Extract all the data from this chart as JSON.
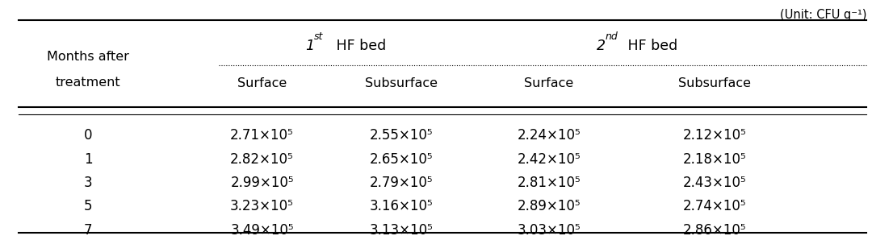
{
  "unit_label": "(Unit: CFU g⁻¹)",
  "col0_header_line1": "Months after",
  "col0_header_line2": "treatment",
  "hf1_label": "1",
  "hf1_super": "st",
  "hf1_rest": " HF bed",
  "hf2_label": "2",
  "hf2_super": "nd",
  "hf2_rest": " HF bed",
  "sub_headers": [
    "Surface",
    "Subsurface",
    "Surface",
    "Subsurface"
  ],
  "months": [
    "0",
    "1",
    "3",
    "5",
    "7"
  ],
  "data": [
    [
      "2.71×10⁵",
      "2.55×10⁵",
      "2.24×10⁵",
      "2.12×10⁵"
    ],
    [
      "2.82×10⁵",
      "2.65×10⁵",
      "2.42×10⁵",
      "2.18×10⁵"
    ],
    [
      "2.99×10⁵",
      "2.79×10⁵",
      "2.81×10⁵",
      "2.43×10⁵"
    ],
    [
      "3.23×10⁵",
      "3.16×10⁵",
      "2.89×10⁵",
      "2.74×10⁵"
    ],
    [
      "3.49×10⁵",
      "3.13×10⁵",
      "3.03×10⁵",
      "2.86×10⁵"
    ]
  ],
  "bg_color": "#ffffff",
  "text_color": "#000000",
  "font_size": 11,
  "header_font_size": 11.5
}
